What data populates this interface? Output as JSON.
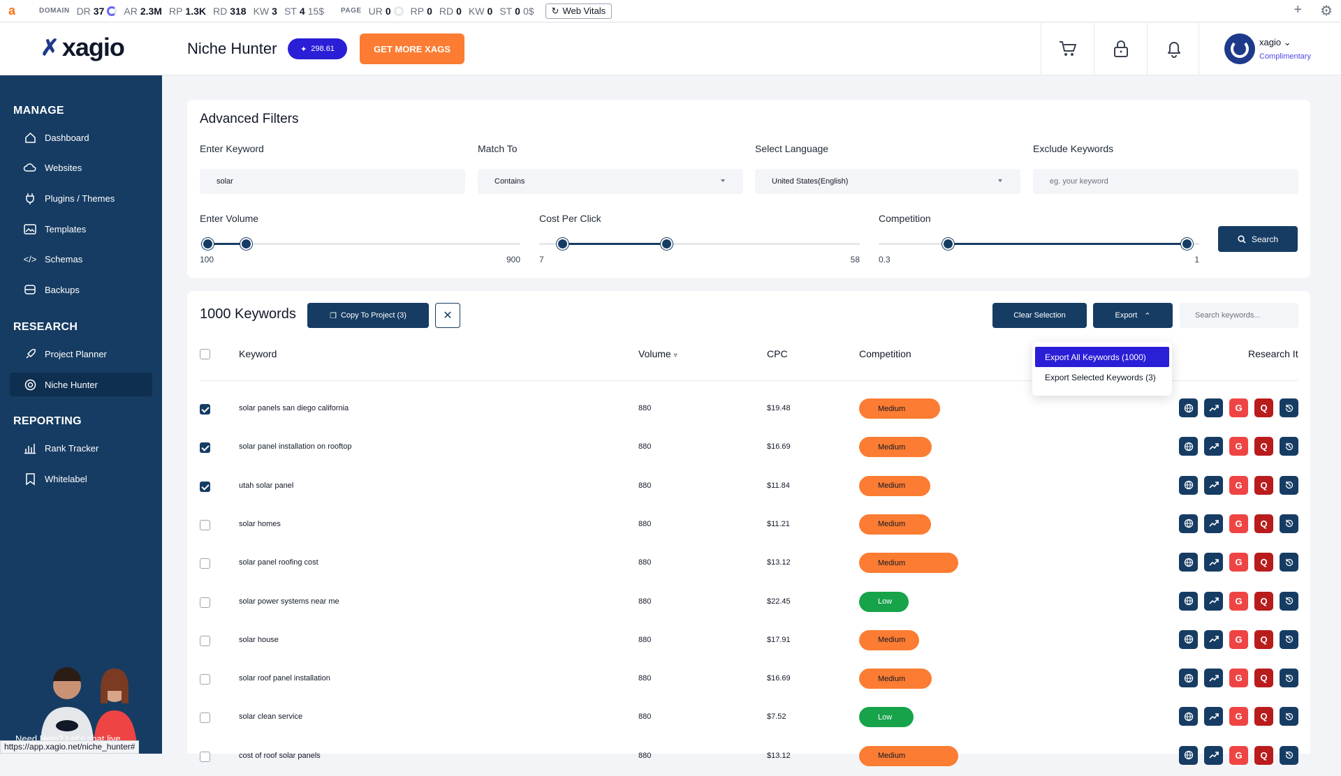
{
  "ext": {
    "domain_label": "DOMAIN",
    "dr": "37",
    "ar": "2.3M",
    "rp": "1.3K",
    "rd": "318",
    "kw": "3",
    "st": "4",
    "st_cost": "15$",
    "page_label": "PAGE",
    "p_ur": "0",
    "p_rp": "0",
    "p_rd": "0",
    "p_kw": "0",
    "p_st": "0",
    "p_st_cost": "0$",
    "web_vitals": "Web Vitals",
    "labels": {
      "dr": "DR",
      "ar": "AR",
      "rp": "RP",
      "rd": "RD",
      "kw": "KW",
      "st": "ST",
      "ur": "UR"
    }
  },
  "header": {
    "logo": "xagio",
    "title": "Niche Hunter",
    "xags": "298.61",
    "get_more": "GET MORE XAGS",
    "user_name": "xagio",
    "user_plan": "Complimentary"
  },
  "sidebar": {
    "manage": "MANAGE",
    "research": "RESEARCH",
    "reporting": "REPORTING",
    "items": {
      "dashboard": "Dashboard",
      "websites": "Websites",
      "plugins": "Plugins / Themes",
      "templates": "Templates",
      "schemas": "Schemas",
      "backups": "Backups",
      "project_planner": "Project Planner",
      "niche_hunter": "Niche Hunter",
      "rank_tracker": "Rank Tracker",
      "whitelabel": "Whitelabel"
    },
    "help": "Need Help? Let's chat live",
    "status_url": "https://app.xagio.net/niche_hunter#"
  },
  "filters": {
    "title": "Advanced Filters",
    "keyword_label": "Enter Keyword",
    "keyword_value": "solar",
    "match_label": "Match To",
    "match_value": "Contains",
    "language_label": "Select Language",
    "language_value": "United States(English)",
    "exclude_label": "Exclude Keywords",
    "exclude_placeholder": "eg. your keyword",
    "volume": {
      "label": "Enter Volume",
      "min": "100",
      "max": "900",
      "low": 100,
      "high": 200
    },
    "cpc": {
      "label": "Cost Per Click",
      "min": "7",
      "max": "58",
      "low": 9.5,
      "high": 27
    },
    "competition": {
      "label": "Competition",
      "min": "0.3",
      "max": "1",
      "low": 0.44,
      "high": 0.99
    },
    "search": "Search"
  },
  "keywords": {
    "count_title": "1000 Keywords",
    "copy_to_project": "Copy To Project (3)",
    "clear_selection": "Clear Selection",
    "export": "Export",
    "search_placeholder": "Search keywords...",
    "export_menu": [
      "Export All Keywords (1000)",
      "Export Selected Keywords (3)"
    ],
    "columns": {
      "keyword": "Keyword",
      "volume": "Volume",
      "cpc": "CPC",
      "competition": "Competition",
      "research": "Research It"
    },
    "rows": [
      {
        "keyword": "solar panels san diego california",
        "volume": "880",
        "cpc": "$19.48",
        "competition": "Medium",
        "level": "medium",
        "checked": true
      },
      {
        "keyword": "solar panel installation on rooftop",
        "volume": "880",
        "cpc": "$16.69",
        "competition": "Medium",
        "level": "medium",
        "checked": true
      },
      {
        "keyword": "utah solar panel",
        "volume": "880",
        "cpc": "$11.84",
        "competition": "Medium",
        "level": "medium",
        "checked": true
      },
      {
        "keyword": "solar homes",
        "volume": "880",
        "cpc": "$11.21",
        "competition": "Medium",
        "level": "medium",
        "checked": false
      },
      {
        "keyword": "solar panel roofing cost",
        "volume": "880",
        "cpc": "$13.12",
        "competition": "Medium",
        "level": "medium",
        "checked": false
      },
      {
        "keyword": "solar power systems near me",
        "volume": "880",
        "cpc": "$22.45",
        "competition": "Low",
        "level": "low",
        "checked": false
      },
      {
        "keyword": "solar house",
        "volume": "880",
        "cpc": "$17.91",
        "competition": "Medium",
        "level": "medium",
        "checked": false
      },
      {
        "keyword": "solar roof panel installation",
        "volume": "880",
        "cpc": "$16.69",
        "competition": "Medium",
        "level": "medium",
        "checked": false
      },
      {
        "keyword": "solar clean service",
        "volume": "880",
        "cpc": "$7.52",
        "competition": "Low",
        "level": "low",
        "checked": false
      },
      {
        "keyword": "cost of roof solar panels",
        "volume": "880",
        "cpc": "$13.12",
        "competition": "Medium",
        "level": "medium",
        "checked": false
      }
    ]
  },
  "colors": {
    "navy": "#163c63",
    "orange": "#fb7c32",
    "green": "#16a34a",
    "indigo": "#2a1ed6",
    "red": "#ef4444"
  }
}
